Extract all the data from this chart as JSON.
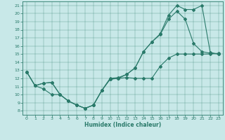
{
  "xlabel": "Humidex (Indice chaleur)",
  "xlim": [
    -0.5,
    23.5
  ],
  "ylim": [
    7.5,
    21.5
  ],
  "xticks": [
    0,
    1,
    2,
    3,
    4,
    5,
    6,
    7,
    8,
    9,
    10,
    11,
    12,
    13,
    14,
    15,
    16,
    17,
    18,
    19,
    20,
    21,
    22,
    23
  ],
  "yticks": [
    8,
    9,
    10,
    11,
    12,
    13,
    14,
    15,
    16,
    17,
    18,
    19,
    20,
    21
  ],
  "color": "#2a7a6a",
  "bg_color": "#c8e8e8",
  "line1_x": [
    0,
    1,
    2,
    3,
    4,
    5,
    6,
    7,
    8,
    9,
    10,
    11,
    12,
    13,
    14,
    15,
    16,
    17,
    18,
    19,
    20,
    21,
    22,
    23
  ],
  "line1_y": [
    12.8,
    11.1,
    10.7,
    10.0,
    10.0,
    9.2,
    8.7,
    8.3,
    8.7,
    10.5,
    11.9,
    12.0,
    12.1,
    12.0,
    12.0,
    12.0,
    13.5,
    14.5,
    15.0,
    15.0,
    15.0,
    15.0,
    15.0,
    15.1
  ],
  "line2_x": [
    0,
    1,
    2,
    3,
    4,
    5,
    6,
    7,
    8,
    9,
    10,
    11,
    12,
    13,
    14,
    15,
    16,
    17,
    18,
    19,
    20,
    21,
    22,
    23
  ],
  "line2_y": [
    12.8,
    11.1,
    11.4,
    11.5,
    10.0,
    9.2,
    8.7,
    8.3,
    8.7,
    10.5,
    11.9,
    12.0,
    12.5,
    13.3,
    15.3,
    16.5,
    17.4,
    19.3,
    20.3,
    19.3,
    16.3,
    15.3,
    15.1,
    15.0
  ],
  "line3_x": [
    0,
    1,
    2,
    3,
    4,
    5,
    6,
    7,
    8,
    9,
    10,
    11,
    12,
    13,
    14,
    15,
    16,
    17,
    18,
    19,
    20,
    21,
    22,
    23
  ],
  "line3_y": [
    12.8,
    11.1,
    11.4,
    11.5,
    10.0,
    9.2,
    8.7,
    8.3,
    8.7,
    10.5,
    12.0,
    12.1,
    12.5,
    13.3,
    15.3,
    16.5,
    17.5,
    19.8,
    21.0,
    20.5,
    20.5,
    21.0,
    15.2,
    15.0
  ]
}
